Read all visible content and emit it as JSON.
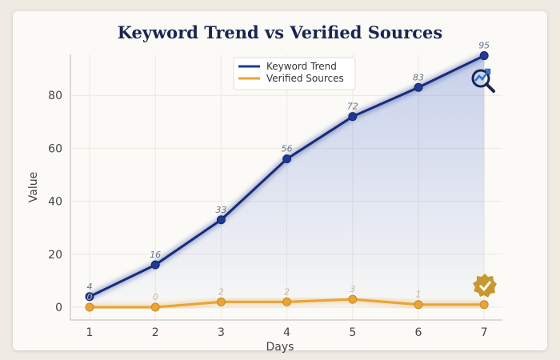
{
  "chart_data": {
    "type": "line",
    "title": "Keyword Trend vs Verified Sources",
    "xlabel": "Days",
    "ylabel": "Value",
    "x": [
      1,
      2,
      3,
      4,
      5,
      6,
      7
    ],
    "xlim": [
      0.7,
      7.3
    ],
    "ylim": [
      -5,
      100
    ],
    "yticks": [
      0,
      20,
      40,
      60,
      80
    ],
    "grid": true,
    "legend": "top-center",
    "series": [
      {
        "name": "Keyword Trend",
        "values": [
          4,
          16,
          33,
          56,
          72,
          83,
          95
        ],
        "labels": [
          "4",
          "16",
          "33",
          "56",
          "72",
          "83",
          "95"
        ],
        "color": "#1f3a93",
        "area_fill": true
      },
      {
        "name": "Verified Sources",
        "values": [
          0,
          0,
          2,
          2,
          3,
          1,
          1
        ],
        "labels": [
          "0",
          "0",
          "2",
          "2",
          "3",
          "1",
          ""
        ],
        "color": "#e8a437"
      }
    ],
    "annotations": [
      {
        "icon": "trend-magnifier-icon",
        "near_series": "Keyword Trend"
      },
      {
        "icon": "verified-badge-icon",
        "near_series": "Verified Sources"
      }
    ]
  }
}
